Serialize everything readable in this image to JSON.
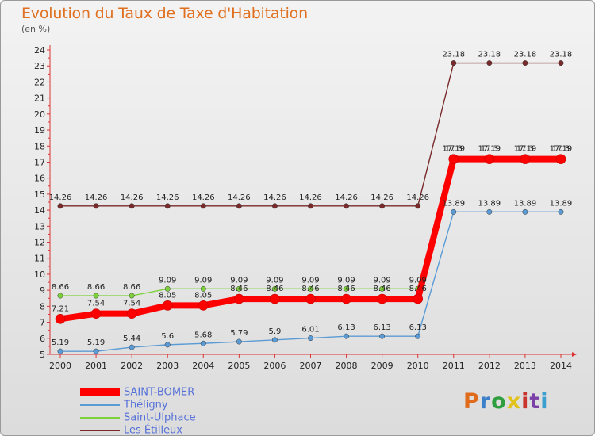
{
  "title": "Evolution du Taux de Taxe d'Habitation",
  "subtitle": "(en %)",
  "logo": "Proxiti",
  "logo_colors": [
    "#e06b1a",
    "#3b7fc8",
    "#2e9e3f",
    "#e0c21a",
    "#c8342c",
    "#7b3fa8",
    "#3b9fd0"
  ],
  "chart_data": {
    "type": "line",
    "title": "Evolution du Taux de Taxe d'Habitation",
    "ylabel": "(en %)",
    "xlabel": "",
    "x": [
      "2000",
      "2001",
      "2002",
      "2003",
      "2004",
      "2005",
      "2006",
      "2007",
      "2008",
      "2009",
      "2010",
      "2011",
      "2012",
      "2013",
      "2014"
    ],
    "ylim": [
      5,
      24
    ],
    "yticks": [
      "5",
      "6",
      "7",
      "8",
      "9",
      "10",
      "11",
      "12",
      "13",
      "14",
      "15",
      "16",
      "17",
      "18",
      "19",
      "20",
      "21",
      "22",
      "23",
      "24"
    ],
    "grid": false,
    "legend_position": "bottom-left",
    "series": [
      {
        "name": "SAINT-BOMER",
        "color": "#ff0000",
        "style": "thick",
        "values": [
          7.21,
          7.54,
          7.54,
          8.05,
          8.05,
          8.46,
          8.46,
          8.46,
          8.46,
          8.46,
          8.46,
          17.19,
          17.19,
          17.19,
          17.19
        ],
        "labels": [
          "7.21",
          "7.54",
          "7.54",
          "8.05",
          "8.05",
          "8.46",
          "8.46",
          "8.46",
          "8.46",
          "8.46",
          "8.46",
          "17.19",
          "17.19",
          "17.19",
          "17.19"
        ]
      },
      {
        "name": "Théligny",
        "color": "#5b9bd5",
        "style": "thin",
        "values": [
          5.19,
          5.19,
          5.44,
          5.6,
          5.68,
          5.79,
          5.9,
          6.01,
          6.13,
          6.13,
          6.13,
          13.89,
          13.89,
          13.89,
          13.89
        ],
        "labels": [
          "5.19",
          "5.19",
          "5.44",
          "5.6",
          "5.68",
          "5.79",
          "5.9",
          "6.01",
          "6.13",
          "6.13",
          "6.13",
          "13.89",
          "13.89",
          "13.89",
          "13.89"
        ]
      },
      {
        "name": "Saint-Ulphace",
        "color": "#7dd23a",
        "style": "thin",
        "values": [
          8.66,
          8.66,
          8.66,
          9.09,
          9.09,
          9.09,
          9.09,
          9.09,
          9.09,
          9.09,
          9.09,
          17.3,
          17.3,
          17.3,
          17.3
        ],
        "labels": [
          "8.66",
          "8.66",
          "8.66",
          "9.09",
          "9.09",
          "9.09",
          "9.09",
          "9.09",
          "9.09",
          "9.09",
          "9.09",
          "17.3",
          "17.3",
          "17.3",
          "17.3"
        ]
      },
      {
        "name": "Les Étilleux",
        "color": "#7a2a2a",
        "style": "thin",
        "values": [
          14.26,
          14.26,
          14.26,
          14.26,
          14.26,
          14.26,
          14.26,
          14.26,
          14.26,
          14.26,
          14.26,
          23.18,
          23.18,
          23.18,
          23.18
        ],
        "labels": [
          "14.26",
          "14.26",
          "14.26",
          "14.26",
          "14.26",
          "14.26",
          "14.26",
          "14.26",
          "14.26",
          "14.26",
          "14.26",
          "23.18",
          "23.18",
          "23.18",
          "23.18"
        ]
      }
    ]
  }
}
